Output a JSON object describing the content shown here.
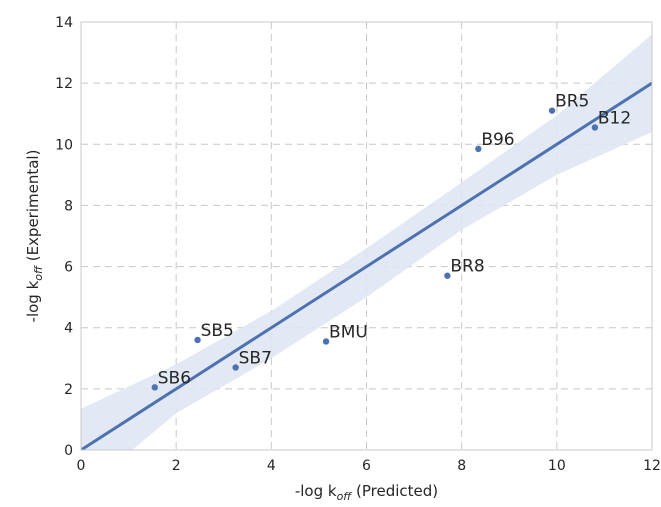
{
  "chart_data": {
    "type": "scatter",
    "xlabel": "-log k<sub>off</sub> (Predicted)",
    "ylabel": "-log k<sub>off</sub> (Experimental)",
    "xlabel_parts": {
      "base": "-log k",
      "sub": "off",
      "suffix": " (Predicted)"
    },
    "ylabel_parts": {
      "base": "-log k",
      "sub": "off",
      "suffix": " (Experimental)"
    },
    "xlim": [
      0,
      12
    ],
    "ylim": [
      0,
      14
    ],
    "xticks": [
      0,
      2,
      4,
      6,
      8,
      10,
      12
    ],
    "yticks": [
      0,
      2,
      4,
      6,
      8,
      10,
      12,
      14
    ],
    "grid": true,
    "points": [
      {
        "label": "SB6",
        "x": 1.55,
        "y": 2.05
      },
      {
        "label": "SB5",
        "x": 2.45,
        "y": 3.6
      },
      {
        "label": "SB7",
        "x": 3.25,
        "y": 2.7
      },
      {
        "label": "BMU",
        "x": 5.15,
        "y": 3.55
      },
      {
        "label": "BR8",
        "x": 7.7,
        "y": 5.7
      },
      {
        "label": "B96",
        "x": 8.35,
        "y": 9.85
      },
      {
        "label": "BR5",
        "x": 9.9,
        "y": 11.1
      },
      {
        "label": "B12",
        "x": 10.8,
        "y": 10.55
      }
    ],
    "regression_line": {
      "x": [
        0,
        12
      ],
      "y": [
        0,
        12
      ]
    },
    "confidence_band": {
      "x": [
        0,
        2,
        4,
        6,
        8,
        10,
        12
      ],
      "upper": [
        1.35,
        2.8,
        4.55,
        6.6,
        8.75,
        10.95,
        13.6
      ],
      "lower": [
        -1.4,
        1.2,
        3.0,
        5.0,
        7.2,
        9.0,
        10.4
      ]
    },
    "colors": {
      "line": "#4c72b0",
      "points": "#4c72b0",
      "band": "#dde5f2",
      "grid": "#c8c8c8"
    }
  }
}
